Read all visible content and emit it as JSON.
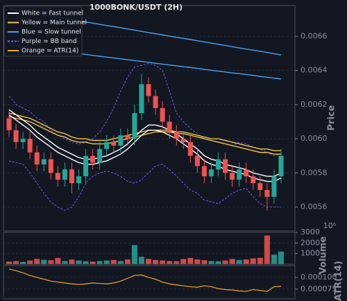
{
  "chart_data": [
    {
      "type": "candlestick",
      "title": "1000BONK/USDT (2H)",
      "ylabel": "Price",
      "ylim": [
        0.00546,
        0.00678
      ],
      "yticks": [
        {
          "value": 0.0056,
          "label": "0.0056"
        },
        {
          "value": 0.0058,
          "label": "0.0058"
        },
        {
          "value": 0.006,
          "label": "0.0060"
        },
        {
          "value": 0.0062,
          "label": "0.0062"
        },
        {
          "value": 0.0064,
          "label": "0.0064"
        },
        {
          "value": 0.0066,
          "label": "0.0066"
        }
      ],
      "grid": true,
      "up_color": "#26a69a",
      "down_color": "#ef5350",
      "open": [
        0.00612,
        0.00605,
        0.00598,
        0.006,
        0.00592,
        0.00585,
        0.00588,
        0.0058,
        0.00576,
        0.00582,
        0.00574,
        0.00578,
        0.0059,
        0.00586,
        0.00594,
        0.00598,
        0.00596,
        0.00602,
        0.006,
        0.00615,
        0.00632,
        0.00625,
        0.00618,
        0.0061,
        0.00604,
        0.006,
        0.00598,
        0.0059,
        0.00584,
        0.00578,
        0.00582,
        0.00588,
        0.0058,
        0.00576,
        0.00582,
        0.00578,
        0.00574,
        0.0057,
        0.00566,
        0.00578
      ],
      "high": [
        0.00616,
        0.00609,
        0.00604,
        0.00604,
        0.00596,
        0.00592,
        0.00592,
        0.00584,
        0.00586,
        0.00586,
        0.00582,
        0.00594,
        0.00594,
        0.00598,
        0.00602,
        0.00602,
        0.00606,
        0.00606,
        0.0062,
        0.00638,
        0.00636,
        0.00629,
        0.00622,
        0.00614,
        0.00608,
        0.00604,
        0.00602,
        0.00594,
        0.00588,
        0.00586,
        0.00592,
        0.00592,
        0.00584,
        0.00586,
        0.00586,
        0.00582,
        0.00578,
        0.00574,
        0.00582,
        0.00594
      ],
      "low": [
        0.00601,
        0.00594,
        0.00594,
        0.00588,
        0.00581,
        0.00581,
        0.00576,
        0.00572,
        0.00572,
        0.00568,
        0.0057,
        0.00574,
        0.00582,
        0.00582,
        0.0059,
        0.00592,
        0.00592,
        0.00596,
        0.00596,
        0.00611,
        0.00621,
        0.00614,
        0.00606,
        0.006,
        0.00596,
        0.00594,
        0.00586,
        0.0058,
        0.00574,
        0.00574,
        0.00578,
        0.00576,
        0.00572,
        0.00572,
        0.00574,
        0.0057,
        0.00566,
        0.00558,
        0.00562,
        0.00574
      ],
      "close": [
        0.00605,
        0.00598,
        0.006,
        0.00592,
        0.00585,
        0.00588,
        0.0058,
        0.00576,
        0.00582,
        0.00574,
        0.00578,
        0.0059,
        0.00586,
        0.00594,
        0.00598,
        0.00596,
        0.00602,
        0.006,
        0.00615,
        0.00632,
        0.00625,
        0.00618,
        0.0061,
        0.00604,
        0.006,
        0.00598,
        0.0059,
        0.00584,
        0.00578,
        0.00582,
        0.00588,
        0.0058,
        0.00576,
        0.00582,
        0.00578,
        0.00574,
        0.0057,
        0.00566,
        0.00578,
        0.0059
      ],
      "legend": [
        {
          "label": "White = Fast tunnel",
          "color": "#ffffff",
          "style": "solid"
        },
        {
          "label": "Yellow = Main tunnel",
          "color": "#f2c744",
          "style": "solid"
        },
        {
          "label": "Blue = Slow tunnel",
          "color": "#4da3f0",
          "style": "solid"
        },
        {
          "label": "Purple = BB band",
          "color": "#7d5cff",
          "style": "dashed"
        },
        {
          "label": "Orange = ATR(14)",
          "color": "#f5a623",
          "style": "solid"
        }
      ],
      "series": [
        {
          "color": "#4da3f0",
          "style": "solid",
          "values": [
            0.00676,
            0.006753,
            0.006746,
            0.006739,
            0.006732,
            0.006726,
            0.006719,
            0.006712,
            0.006705,
            0.006698,
            0.006691,
            0.006684,
            0.006677,
            0.00667,
            0.006663,
            0.006657,
            0.00665,
            0.006643,
            0.006636,
            0.006629,
            0.006622,
            0.006615,
            0.006608,
            0.006601,
            0.006594,
            0.006588,
            0.006581,
            0.006574,
            0.006567,
            0.00656,
            0.006553,
            0.006546,
            0.006539,
            0.006532,
            0.006525,
            0.006519,
            0.006512,
            0.006505,
            0.006498,
            0.006491
          ],
          "values2": [
            0.00655,
            0.006545,
            0.00654,
            0.006535,
            0.006529,
            0.006524,
            0.006519,
            0.006514,
            0.006509,
            0.006504,
            0.006499,
            0.006494,
            0.006488,
            0.006483,
            0.006478,
            0.006473,
            0.006468,
            0.006463,
            0.006458,
            0.006453,
            0.006447,
            0.006442,
            0.006437,
            0.006432,
            0.006427,
            0.006422,
            0.006417,
            0.006412,
            0.006406,
            0.006401,
            0.006396,
            0.006391,
            0.006386,
            0.006381,
            0.006376,
            0.006371,
            0.006365,
            0.00636,
            0.006355,
            0.00635
          ]
        },
        {
          "color": "#7d5cff",
          "style": "dashed",
          "values": [
            0.00625,
            0.0062,
            0.00618,
            0.00616,
            0.00612,
            0.0061,
            0.00605,
            0.00602,
            0.006,
            0.00598,
            0.00597,
            0.00598,
            0.006,
            0.00604,
            0.0061,
            0.00618,
            0.00628,
            0.00636,
            0.00642,
            0.00643,
            0.00644,
            0.00643,
            0.0064,
            0.00628,
            0.00615,
            0.0061,
            0.00606,
            0.00603,
            0.006,
            0.00599,
            0.00598,
            0.00597,
            0.00596,
            0.00598,
            0.00597,
            0.00595,
            0.00594,
            0.00592,
            0.0059,
            0.00591
          ],
          "values2": [
            0.00587,
            0.00586,
            0.00585,
            0.0058,
            0.00574,
            0.00568,
            0.00563,
            0.0056,
            0.00558,
            0.0056,
            0.00566,
            0.00574,
            0.00578,
            0.0058,
            0.00581,
            0.0058,
            0.00578,
            0.00575,
            0.00574,
            0.00576,
            0.0058,
            0.00584,
            0.00585,
            0.00582,
            0.00578,
            0.00574,
            0.0057,
            0.00568,
            0.00564,
            0.00563,
            0.00562,
            0.00565,
            0.00568,
            0.0057,
            0.00571,
            0.00566,
            0.00562,
            0.0056,
            0.0056,
            0.0056
          ]
        },
        {
          "color": "#f2c744",
          "style": "solid",
          "values": [
            0.00615,
            0.00614,
            0.00613,
            0.00612,
            0.0061,
            0.00608,
            0.00606,
            0.00604,
            0.00603,
            0.00601,
            0.006,
            0.006,
            0.00599,
            0.00599,
            0.00599,
            0.006,
            0.00601,
            0.00602,
            0.00603,
            0.00604,
            0.00605,
            0.00605,
            0.00605,
            0.00605,
            0.00604,
            0.00604,
            0.00603,
            0.00602,
            0.00601,
            0.006,
            0.006,
            0.00599,
            0.00598,
            0.00597,
            0.00596,
            0.00595,
            0.00594,
            0.00594,
            0.00593,
            0.00593
          ],
          "values2": [
            0.00613,
            0.00612,
            0.00611,
            0.0061,
            0.00608,
            0.00606,
            0.00604,
            0.00602,
            0.00601,
            0.00599,
            0.00598,
            0.00598,
            0.00597,
            0.00597,
            0.00597,
            0.00598,
            0.00599,
            0.006,
            0.00601,
            0.00602,
            0.00603,
            0.00604,
            0.00604,
            0.00604,
            0.00603,
            0.00603,
            0.00602,
            0.00601,
            0.006,
            0.00599,
            0.00598,
            0.00597,
            0.00596,
            0.00595,
            0.00594,
            0.00593,
            0.00592,
            0.00592,
            0.00591,
            0.00591
          ]
        },
        {
          "color": "#ffffff",
          "style": "solid",
          "values": [
            0.00617,
            0.00614,
            0.00611,
            0.00608,
            0.00604,
            0.00601,
            0.00598,
            0.00595,
            0.00593,
            0.00591,
            0.00589,
            0.00588,
            0.00588,
            0.00589,
            0.0059,
            0.00592,
            0.00594,
            0.00597,
            0.00601,
            0.00605,
            0.00608,
            0.00608,
            0.00607,
            0.00605,
            0.00603,
            0.006,
            0.00597,
            0.00594,
            0.0059,
            0.00588,
            0.00587,
            0.00585,
            0.00584,
            0.00583,
            0.00582,
            0.0058,
            0.00579,
            0.00578,
            0.00578,
            0.0058
          ],
          "values2": [
            0.00614,
            0.00611,
            0.00608,
            0.00605,
            0.00601,
            0.00598,
            0.00595,
            0.00592,
            0.0059,
            0.00588,
            0.00586,
            0.00585,
            0.00585,
            0.00586,
            0.00587,
            0.00589,
            0.00591,
            0.00594,
            0.00598,
            0.00602,
            0.00605,
            0.00605,
            0.00604,
            0.00602,
            0.006,
            0.00597,
            0.00594,
            0.00591,
            0.00587,
            0.00585,
            0.00584,
            0.00582,
            0.00581,
            0.0058,
            0.00579,
            0.00577,
            0.00576,
            0.00575,
            0.00575,
            0.00577
          ]
        }
      ]
    },
    {
      "type": "bar",
      "ylabel": "Volume",
      "offset_label": "10⁶",
      "ylim": [
        0,
        3000
      ],
      "yticks": [
        1000,
        2000,
        3000
      ],
      "values": [
        250,
        300,
        220,
        350,
        500,
        420,
        380,
        600,
        300,
        450,
        350,
        280,
        250,
        300,
        350,
        400,
        300,
        450,
        1800,
        700,
        500,
        400,
        350,
        300,
        280,
        500,
        600,
        450,
        380,
        300,
        280,
        350,
        500,
        400,
        450,
        550,
        600,
        2700,
        900,
        1200
      ]
    },
    {
      "type": "line",
      "ylabel": "ATR(14)",
      "color": "#f5a623",
      "ylim": [
        5.4e-05,
        0.000125
      ],
      "yticks": [
        {
          "value": 7.5e-05,
          "label": "0.000075"
        },
        {
          "value": 0.0001,
          "label": "0.000100"
        }
      ],
      "values": [
        0.000118,
        0.000114,
        0.00011,
        0.000104,
        0.0001,
        9.6e-05,
        9.2e-05,
        9e-05,
        8.8e-05,
        8.6e-05,
        8.5e-05,
        8.6e-05,
        8.8e-05,
        8.7e-05,
        8.6e-05,
        8.8e-05,
        9.2e-05,
        9.8e-05,
        0.000104,
        0.000105,
        0.0001,
        9.6e-05,
        9e-05,
        8.6e-05,
        8.4e-05,
        8.2e-05,
        8e-05,
        7.9e-05,
        8.2e-05,
        8e-05,
        7.6e-05,
        7.4e-05,
        7.3e-05,
        7.1e-05,
        7e-05,
        7.4e-05,
        7.2e-05,
        7e-05,
        8e-05,
        8.1e-05
      ]
    }
  ]
}
